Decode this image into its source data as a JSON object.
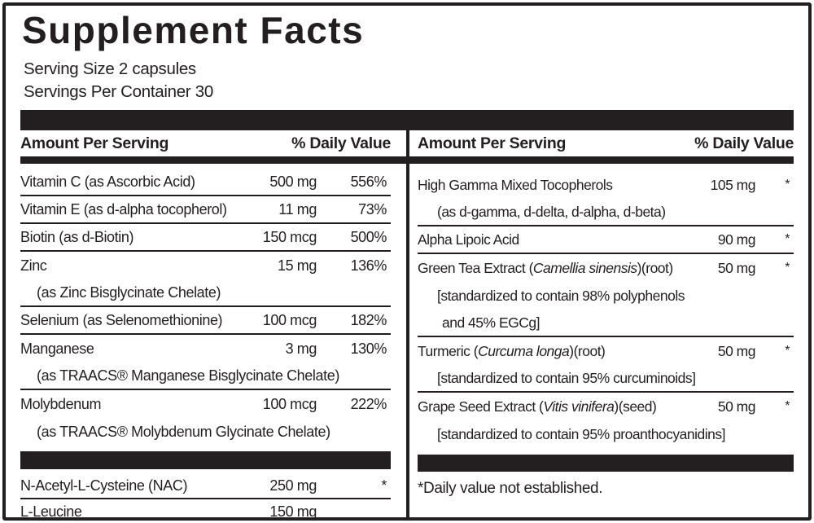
{
  "title": "Supplement Facts",
  "serving_size": "Serving Size 2 capsules",
  "servings_per_container": "Servings Per Container 30",
  "col_header": {
    "amount": "Amount Per Serving",
    "dv": "% Daily Value"
  },
  "left_rows": [
    {
      "name": "Vitamin C (as Ascorbic Acid)",
      "amount": "500 mg",
      "dv": "556%"
    },
    {
      "name": "Vitamin E (as d-alpha tocopherol)",
      "amount": "11 mg",
      "dv": "73%"
    },
    {
      "name": "Biotin (as d-Biotin)",
      "amount": "150 mcg",
      "dv": "500%"
    },
    {
      "name": "Zinc",
      "amount": "15 mg",
      "dv": "136%"
    },
    {
      "sub": "(as Zinc Bisglycinate Chelate)"
    },
    {
      "name": "Selenium (as Selenomethionine)",
      "amount": "100 mcg",
      "dv": "182%"
    },
    {
      "name": "Manganese",
      "amount": "3 mg",
      "dv": "130%"
    },
    {
      "sub": "(as TRAACS® Manganese Bisglycinate Chelate)"
    },
    {
      "name": "Molybdenum",
      "amount": "100 mcg",
      "dv": "222%"
    },
    {
      "sub": "(as TRAACS® Molybdenum Glycinate Chelate)"
    },
    {
      "name": "N-Acetyl-L-Cysteine (NAC)",
      "amount": "250 mg",
      "dv": "*"
    },
    {
      "name": "L-Leucine",
      "amount": "150 mg",
      "dv": ""
    }
  ],
  "right_rows": [
    {
      "name": "High Gamma Mixed Tocopherols",
      "amount": "105 mg",
      "dv": "*"
    },
    {
      "sub": "(as d-gamma, d-delta, d-alpha, d-beta)"
    },
    {
      "name": "Alpha Lipoic Acid",
      "amount": "90 mg",
      "dv": "*"
    },
    {
      "name_pre": "Green Tea Extract (",
      "name_it": "Camellia sinensis",
      "name_post": ")(root)",
      "amount": "50 mg",
      "dv": "*"
    },
    {
      "sub": "[standardized to contain 98% polyphenols"
    },
    {
      "sub": "and 45% EGCg]"
    },
    {
      "name_pre": "Turmeric (",
      "name_it": "Curcuma longa",
      "name_post": ")(root)",
      "amount": "50 mg",
      "dv": "*"
    },
    {
      "sub": "[standardized to contain 95% curcuminoids]"
    },
    {
      "name_pre": "Grape Seed Extract (",
      "name_it": "Vitis vinifera",
      "name_post": ")(seed)",
      "amount": "50 mg",
      "dv": "*"
    },
    {
      "sub": "[standardized to contain 95% proanthocyanidins]"
    }
  ],
  "footnote": "*Daily value not established.",
  "colors": {
    "ink": "#231f20",
    "background": "#ffffff"
  }
}
